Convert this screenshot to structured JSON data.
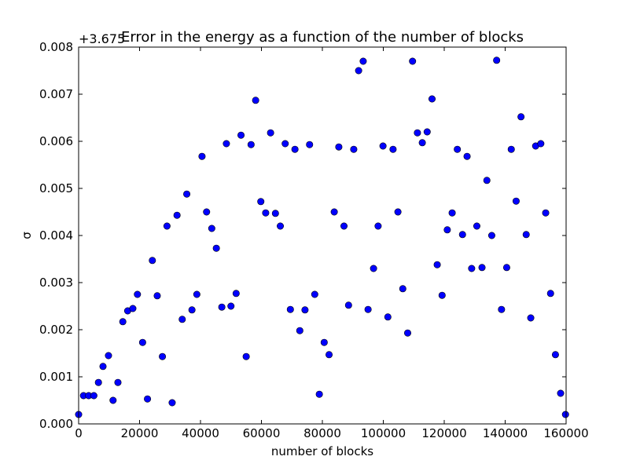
{
  "colors": {
    "marker_fill": "#0000ff",
    "marker_edge": "#000000",
    "axes": "#000000",
    "background": "#ffffff"
  },
  "chart_data": {
    "type": "scatter",
    "title": "Error in the energy as a function of the number of blocks",
    "xlabel": "number of blocks",
    "ylabel": "σ",
    "offset_text": "+3.675",
    "xlim": [
      0,
      160000
    ],
    "ylim": [
      0.0,
      0.008
    ],
    "xticks": [
      0,
      20000,
      40000,
      60000,
      80000,
      100000,
      120000,
      140000,
      160000
    ],
    "xtick_labels": [
      "0",
      "20000",
      "40000",
      "60000",
      "80000",
      "100000",
      "120000",
      "140000",
      "160000"
    ],
    "yticks": [
      0.0,
      0.001,
      0.002,
      0.003,
      0.004,
      0.005,
      0.006,
      0.007,
      0.008
    ],
    "ytick_labels": [
      "0.000",
      "0.001",
      "0.002",
      "0.003",
      "0.004",
      "0.005",
      "0.006",
      "0.007",
      "0.008"
    ],
    "grid": false,
    "legend": "none",
    "marker": "circle",
    "series": [
      {
        "points": [
          [
            0,
            0.0002
          ],
          [
            1600,
            0.0006
          ],
          [
            3300,
            0.0006
          ],
          [
            5000,
            0.0006
          ],
          [
            6500,
            0.00088
          ],
          [
            8000,
            0.00122
          ],
          [
            9800,
            0.00145
          ],
          [
            11300,
            0.0005
          ],
          [
            12900,
            0.00088
          ],
          [
            14500,
            0.00217
          ],
          [
            16100,
            0.0024
          ],
          [
            17800,
            0.00245
          ],
          [
            19300,
            0.00275
          ],
          [
            21000,
            0.00173
          ],
          [
            22600,
            0.00053
          ],
          [
            24200,
            0.00347
          ],
          [
            25800,
            0.00272
          ],
          [
            27500,
            0.00143
          ],
          [
            29000,
            0.0042
          ],
          [
            30700,
            0.00045
          ],
          [
            32300,
            0.00443
          ],
          [
            34000,
            0.00222
          ],
          [
            35500,
            0.00488
          ],
          [
            37200,
            0.00242
          ],
          [
            38800,
            0.00275
          ],
          [
            40500,
            0.00568
          ],
          [
            42000,
            0.0045
          ],
          [
            43700,
            0.00415
          ],
          [
            45200,
            0.00373
          ],
          [
            47000,
            0.00248
          ],
          [
            48500,
            0.00595
          ],
          [
            50000,
            0.0025
          ],
          [
            51700,
            0.00277
          ],
          [
            53300,
            0.00613
          ],
          [
            55000,
            0.00143
          ],
          [
            56600,
            0.00593
          ],
          [
            58100,
            0.00687
          ],
          [
            59800,
            0.00472
          ],
          [
            61400,
            0.00448
          ],
          [
            63000,
            0.00618
          ],
          [
            64600,
            0.00447
          ],
          [
            66200,
            0.0042
          ],
          [
            67800,
            0.00595
          ],
          [
            69500,
            0.00243
          ],
          [
            71000,
            0.00583
          ],
          [
            72600,
            0.00198
          ],
          [
            74300,
            0.00242
          ],
          [
            75800,
            0.00593
          ],
          [
            77500,
            0.00275
          ],
          [
            79000,
            0.00063
          ],
          [
            80600,
            0.00173
          ],
          [
            82200,
            0.00147
          ],
          [
            83900,
            0.0045
          ],
          [
            85400,
            0.00588
          ],
          [
            87100,
            0.0042
          ],
          [
            88600,
            0.00252
          ],
          [
            90300,
            0.00583
          ],
          [
            91900,
            0.0075
          ],
          [
            93400,
            0.0077
          ],
          [
            95000,
            0.00243
          ],
          [
            96800,
            0.0033
          ],
          [
            98300,
            0.0042
          ],
          [
            99900,
            0.0059
          ],
          [
            101500,
            0.00227
          ],
          [
            103200,
            0.00583
          ],
          [
            104800,
            0.0045
          ],
          [
            106400,
            0.00287
          ],
          [
            108000,
            0.00193
          ],
          [
            109600,
            0.0077
          ],
          [
            111200,
            0.00618
          ],
          [
            112800,
            0.00597
          ],
          [
            114400,
            0.0062
          ],
          [
            116000,
            0.0069
          ],
          [
            117700,
            0.00338
          ],
          [
            119300,
            0.00273
          ],
          [
            121000,
            0.00412
          ],
          [
            122600,
            0.00448
          ],
          [
            124300,
            0.00583
          ],
          [
            126000,
            0.00402
          ],
          [
            127500,
            0.00568
          ],
          [
            129000,
            0.0033
          ],
          [
            130700,
            0.0042
          ],
          [
            132400,
            0.00332
          ],
          [
            134000,
            0.00517
          ],
          [
            135600,
            0.004
          ],
          [
            137200,
            0.00772
          ],
          [
            138800,
            0.00243
          ],
          [
            140500,
            0.00332
          ],
          [
            142000,
            0.00583
          ],
          [
            143600,
            0.00473
          ],
          [
            145200,
            0.00652
          ],
          [
            146900,
            0.00402
          ],
          [
            148400,
            0.00225
          ],
          [
            150000,
            0.0059
          ],
          [
            151700,
            0.00595
          ],
          [
            153300,
            0.00448
          ],
          [
            154900,
            0.00277
          ],
          [
            156500,
            0.00147
          ],
          [
            158200,
            0.00065
          ],
          [
            159800,
            0.0002
          ]
        ]
      }
    ]
  }
}
